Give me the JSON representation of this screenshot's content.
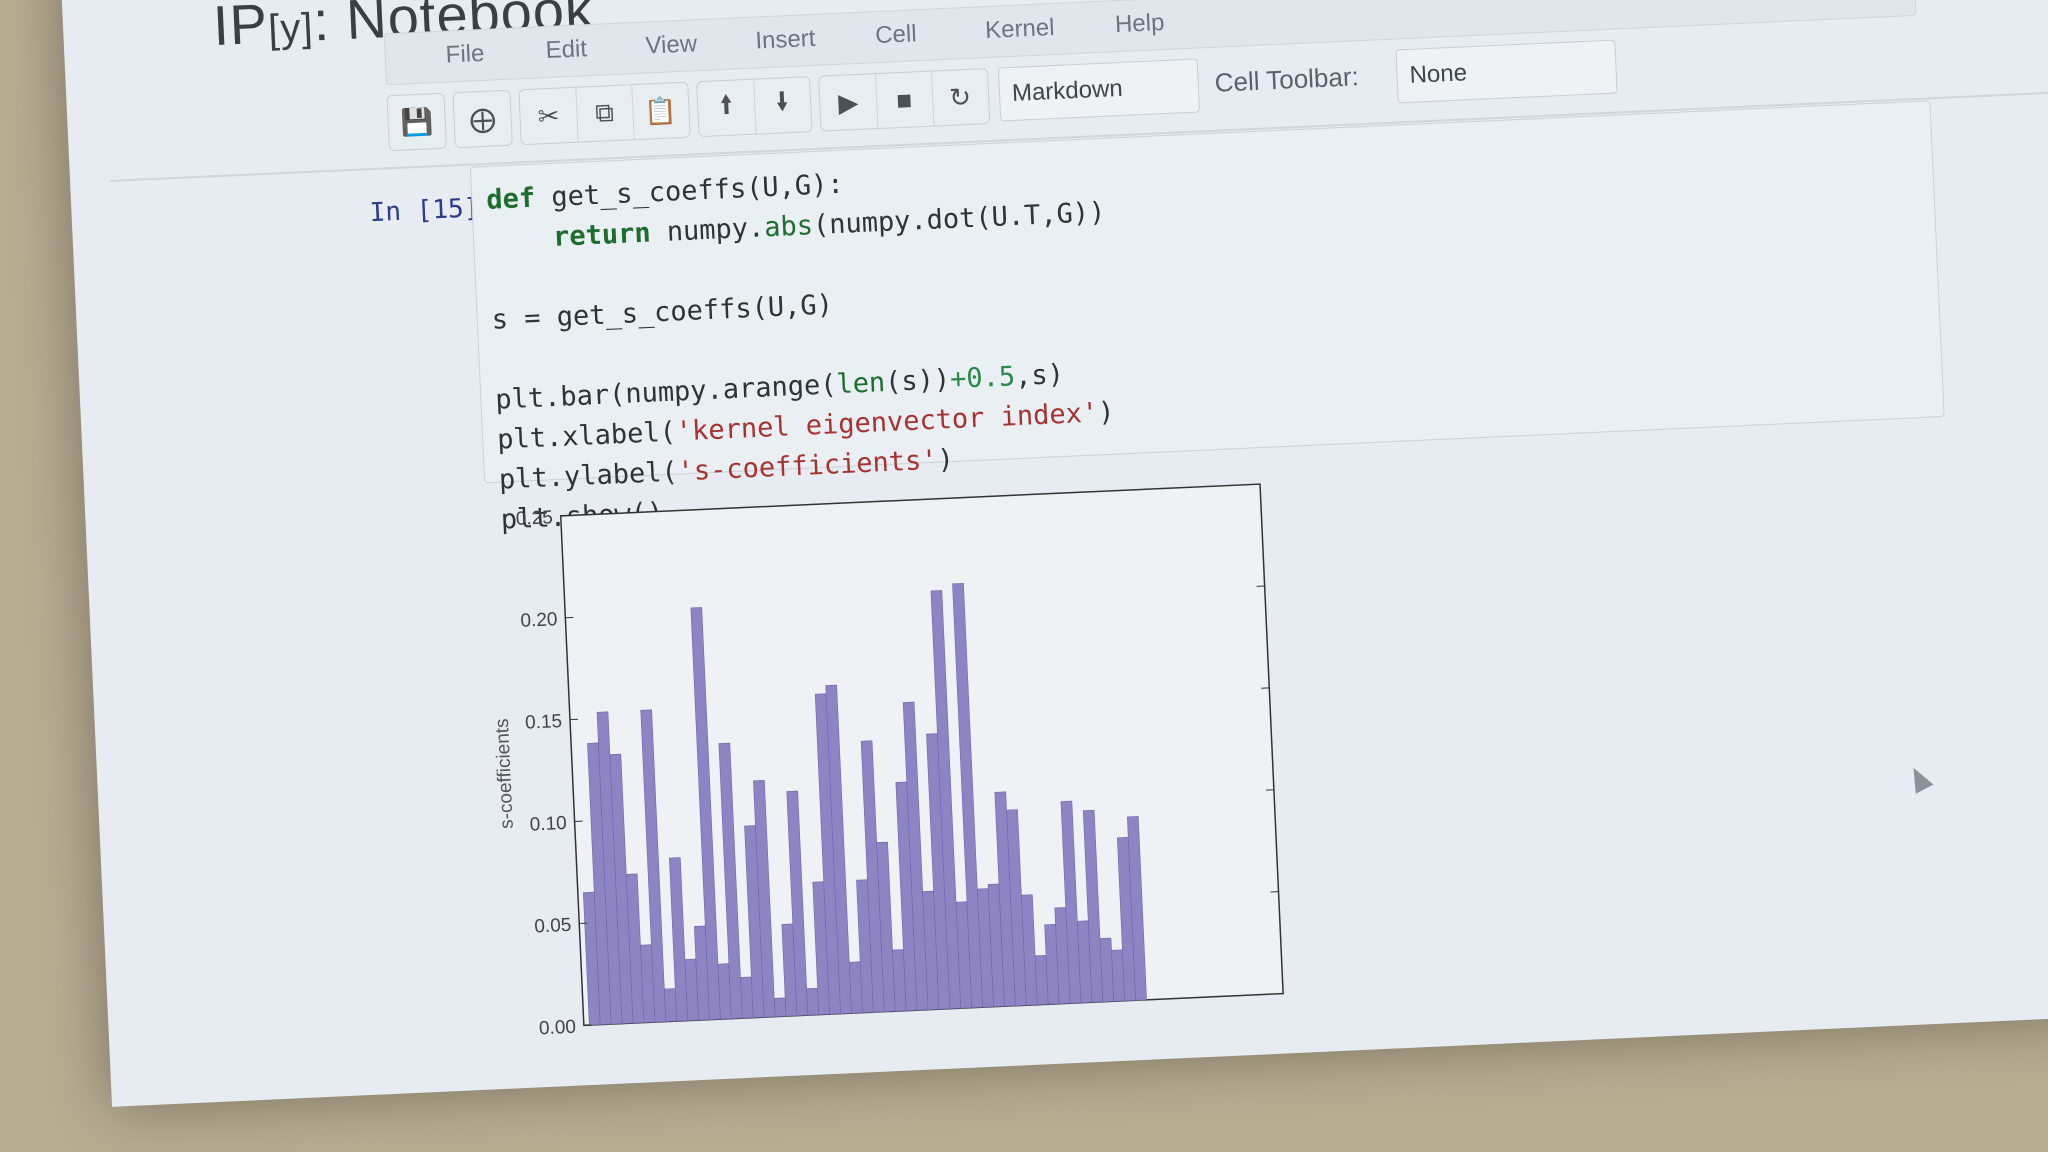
{
  "app": {
    "title_ip": "IP",
    "title_y": "[y]",
    "title_rest": ": Notebook"
  },
  "menu": [
    {
      "label": "File"
    },
    {
      "label": "Edit"
    },
    {
      "label": "View"
    },
    {
      "label": "Insert"
    },
    {
      "label": "Cell"
    },
    {
      "label": "Kernel"
    },
    {
      "label": "Help"
    }
  ],
  "toolbar": {
    "icons": [
      "save-icon",
      "plus-icon",
      "cut-icon",
      "copy-icon",
      "paste-icon",
      "arrow-up-icon",
      "arrow-down-icon",
      "play-icon",
      "stop-icon",
      "restart-icon"
    ],
    "cell_type": "Markdown",
    "cell_toolbar_label": "Cell Toolbar:",
    "cell_toolbar_value": "None"
  },
  "cell": {
    "prompt": "In [15]:"
  },
  "chart_data": {
    "type": "bar",
    "xlabel": "",
    "ylabel": "s-coefficients",
    "ylim": [
      0,
      0.25
    ],
    "yticks": [
      "0.00",
      "0.05",
      "0.10",
      "0.15",
      "0.20",
      "0.25"
    ],
    "xlim": [
      0,
      64
    ],
    "grid": false,
    "color": "#8e84c4",
    "values": [
      0.065,
      0.138,
      0.153,
      0.132,
      0.073,
      0.038,
      0.153,
      0.016,
      0.08,
      0.03,
      0.046,
      0.202,
      0.027,
      0.135,
      0.02,
      0.094,
      0.116,
      0.009,
      0.045,
      0.11,
      0.013,
      0.065,
      0.157,
      0.161,
      0.025,
      0.065,
      0.133,
      0.083,
      0.03,
      0.112,
      0.151,
      0.058,
      0.135,
      0.205,
      0.052,
      0.208,
      0.058,
      0.06,
      0.105,
      0.096,
      0.054,
      0.024,
      0.039,
      0.047,
      0.099,
      0.04,
      0.094,
      0.031,
      0.025,
      0.08,
      0.09
    ]
  }
}
